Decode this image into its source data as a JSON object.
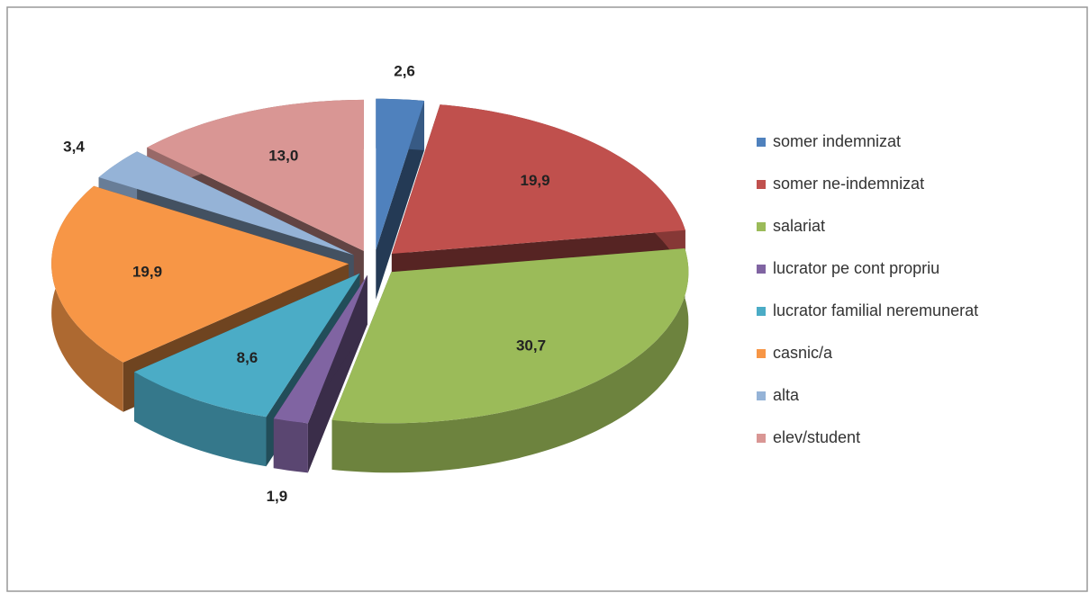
{
  "chart_data": {
    "type": "pie",
    "categories": [
      "somer indemnizat",
      "somer ne-indemnizat",
      "salariat",
      "lucrator pe cont propriu",
      "lucrator familial neremunerat",
      "casnic/a",
      "alta",
      "elev/student"
    ],
    "values": [
      2.6,
      19.9,
      30.7,
      1.9,
      8.6,
      19.9,
      3.4,
      13.0
    ],
    "value_labels": [
      "2,6",
      "19,9",
      "30,7",
      "1,9",
      "8,6",
      "19,9",
      "3,4",
      "13,0"
    ],
    "colors": [
      "#4f81bd",
      "#c0504d",
      "#9bbb59",
      "#8064a2",
      "#4bacc6",
      "#f79646",
      "#95b3d7",
      "#d99694"
    ],
    "legend": "right"
  }
}
